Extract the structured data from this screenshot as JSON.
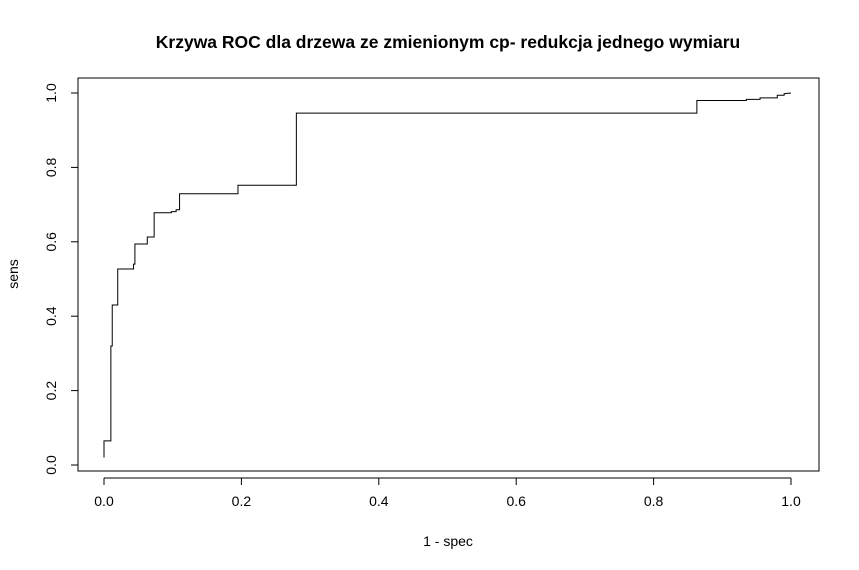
{
  "chart_data": {
    "type": "line",
    "step": true,
    "title": "Krzywa ROC dla drzewa ze zmienionym cp- redukcja jednego wymiaru",
    "xlabel": "1 - spec",
    "ylabel": "sens",
    "xlim": [
      0,
      1
    ],
    "ylim": [
      0,
      1
    ],
    "x_ticks": [
      "0.0",
      "0.2",
      "0.4",
      "0.6",
      "0.8",
      "1.0"
    ],
    "y_ticks": [
      "0.0",
      "0.2",
      "0.4",
      "0.6",
      "0.8",
      "1.0"
    ],
    "grid": false,
    "legend": "none",
    "line_color": "#000000",
    "series": [
      {
        "x": [
          0.0,
          0.0,
          0.01,
          0.01,
          0.012,
          0.012,
          0.02,
          0.02,
          0.043,
          0.043,
          0.045,
          0.045,
          0.063,
          0.063,
          0.073,
          0.073,
          0.098,
          0.098,
          0.105,
          0.105,
          0.11,
          0.11,
          0.195,
          0.195,
          0.28,
          0.28,
          0.863,
          0.863,
          0.935,
          0.935,
          0.955,
          0.955,
          0.98,
          0.98,
          0.99,
          0.99,
          1.0
        ],
        "y": [
          0.02,
          0.065,
          0.065,
          0.32,
          0.32,
          0.43,
          0.43,
          0.527,
          0.527,
          0.54,
          0.54,
          0.594,
          0.594,
          0.613,
          0.613,
          0.678,
          0.678,
          0.681,
          0.681,
          0.686,
          0.686,
          0.729,
          0.729,
          0.752,
          0.752,
          0.946,
          0.946,
          0.98,
          0.98,
          0.983,
          0.983,
          0.987,
          0.987,
          0.994,
          0.994,
          0.998,
          1.0
        ]
      }
    ]
  }
}
